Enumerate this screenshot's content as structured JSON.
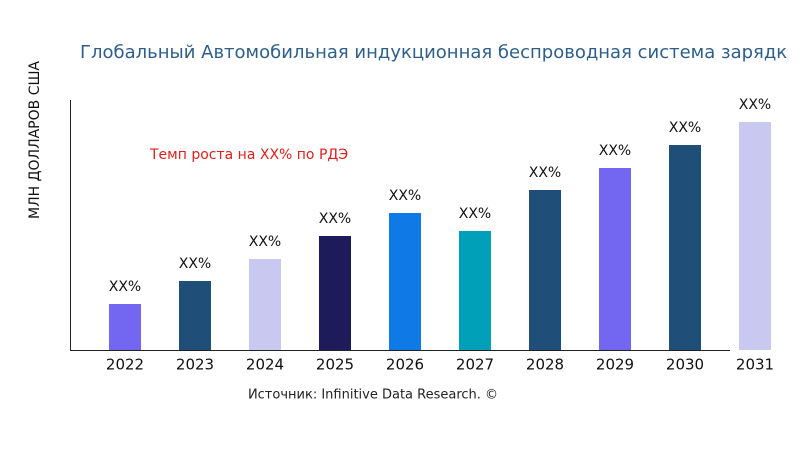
{
  "chart_data": {
    "type": "bar",
    "title": "Глобальный Автомобильная индукционная беспроводная система зарядк",
    "y_label": "МЛН ДОЛЛАРОВ США",
    "annotation": "Темп роста на XX% по РДЭ",
    "source": "Источник: Infinitive Data Research. ©",
    "categories": [
      "2022",
      "2023",
      "2024",
      "2025",
      "2026",
      "2027",
      "2028",
      "2029",
      "2030",
      "2031"
    ],
    "values": [
      46,
      69,
      91,
      114,
      137,
      119,
      160,
      182,
      205,
      228
    ],
    "value_labels": [
      "XX%",
      "XX%",
      "XX%",
      "XX%",
      "XX%",
      "XX%",
      "XX%",
      "XX%",
      "XX%",
      "XX%"
    ],
    "colors": [
      "#7366f0",
      "#1f4e79",
      "#c8c8f0",
      "#1e1b5a",
      "#0f7ae5",
      "#00a0b8",
      "#1f4e79",
      "#7366f0",
      "#1f4e79",
      "#c8c8f0"
    ],
    "ylim": [
      0,
      250
    ]
  }
}
